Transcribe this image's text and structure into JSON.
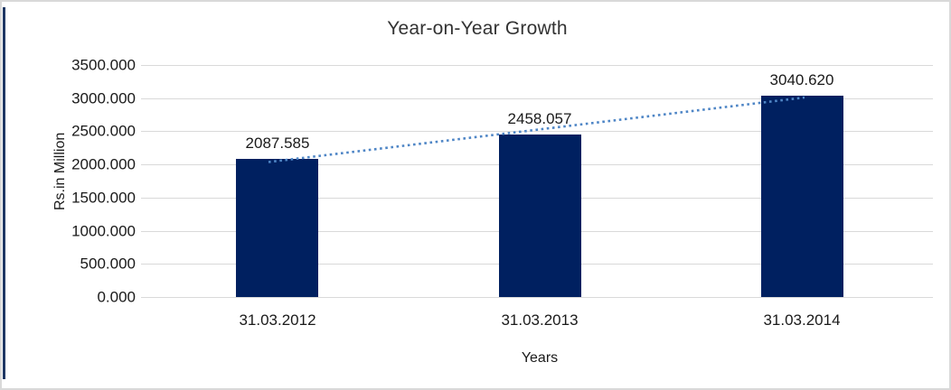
{
  "chart_data": {
    "type": "bar",
    "title": "Year-on-Year Growth",
    "xlabel": "Years",
    "ylabel": "Rs.in Million",
    "categories": [
      "31.03.2012",
      "31.03.2013",
      "31.03.2014"
    ],
    "values": [
      2087.585,
      2458.057,
      3040.62
    ],
    "value_labels": [
      "2087.585",
      "2458.057",
      "3040.620"
    ],
    "ytick_labels": [
      "3500.000",
      "3000.000",
      "2500.000",
      "2000.000",
      "1500.000",
      "1000.000",
      "500.000",
      "0.000"
    ],
    "ylim": [
      0,
      3500
    ],
    "ytick_step": 500,
    "grid": true,
    "legend_position": "none",
    "bar_color": "#002060",
    "trendline": {
      "type": "linear",
      "style": "dotted",
      "color": "#4F86C6"
    },
    "gridline_color": "#d9d9d9",
    "frame_border_color": "#d9d9d9",
    "left_accent_color": "#1F3864"
  }
}
